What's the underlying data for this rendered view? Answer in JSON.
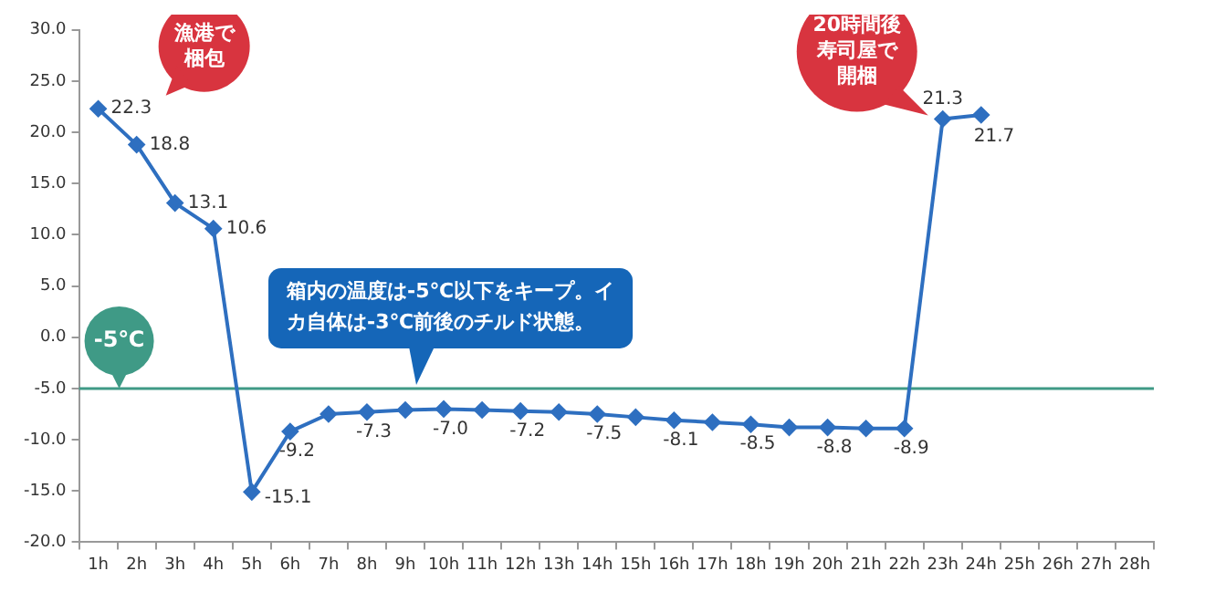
{
  "chart_data": {
    "type": "line",
    "categories": [
      "1h",
      "2h",
      "3h",
      "4h",
      "5h",
      "6h",
      "7h",
      "8h",
      "9h",
      "10h",
      "11h",
      "12h",
      "13h",
      "14h",
      "15h",
      "16h",
      "17h",
      "18h",
      "19h",
      "20h",
      "21h",
      "22h",
      "23h",
      "24h",
      "25h",
      "26h",
      "27h",
      "28h"
    ],
    "series": [
      {
        "color": "#2e6fc0",
        "values": [
          22.3,
          18.8,
          13.1,
          10.6,
          -15.1,
          -9.2,
          -7.5,
          -7.3,
          -7.1,
          -7.0,
          -7.1,
          -7.2,
          -7.3,
          -7.5,
          -7.8,
          -8.1,
          -8.3,
          -8.5,
          -8.8,
          -8.8,
          -8.9,
          -8.9,
          21.3,
          21.7,
          null,
          null,
          null,
          null
        ],
        "value_labels": [
          "22.3",
          "18.8",
          "13.1",
          "10.6",
          "-15.1",
          "-9.2",
          null,
          "-7.3",
          null,
          "-7.0",
          null,
          "-7.2",
          null,
          "-7.5",
          null,
          "-8.1",
          null,
          "-8.5",
          null,
          "-8.8",
          null,
          "-8.9",
          "21.3",
          "21.7",
          null,
          null,
          null,
          null
        ]
      }
    ],
    "ylim": [
      -20,
      30
    ],
    "yticks": [
      {
        "value": -20,
        "label": "-20.0"
      },
      {
        "value": -15,
        "label": "-15.0"
      },
      {
        "value": -10,
        "label": "-10.0"
      },
      {
        "value": -5,
        "label": "-5.0"
      },
      {
        "value": 0,
        "label": "0.0"
      },
      {
        "value": 5,
        "label": "5.0"
      },
      {
        "value": 10,
        "label": "10.0"
      },
      {
        "value": 15,
        "label": "15.0"
      },
      {
        "value": 20,
        "label": "20.0"
      },
      {
        "value": 25,
        "label": "25.0"
      },
      {
        "value": 30,
        "label": "30.0"
      }
    ],
    "grid": false,
    "legend": false,
    "marker": "diamond",
    "line_style": "solid",
    "ref_lines": [
      {
        "axis": "y",
        "value": -5,
        "label": "-5℃",
        "color": "#3f9a86"
      }
    ],
    "annotations": [
      "漁港で梱包",
      {
        "text": "20時間後寿司屋で開梱",
        "x": "23h",
        "y": 21.3
      },
      {
        "text": "箱内の温度は-5℃以下をキープ。イカ自体は-3℃前後のチルド状態。",
        "x": "9h",
        "y": -5
      }
    ]
  }
}
